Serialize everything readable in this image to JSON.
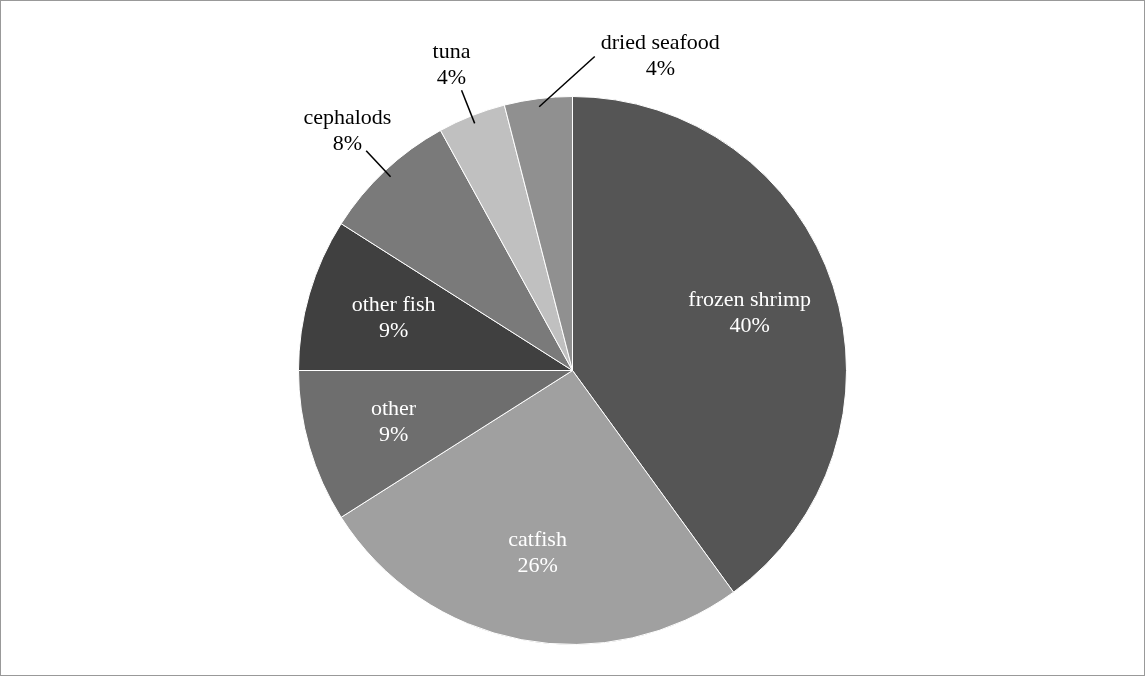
{
  "chart_data": {
    "type": "pie",
    "categories": [
      "frozen shrimp",
      "catfish",
      "other",
      "other fish",
      "cephalods",
      "tuna",
      "dried seafood"
    ],
    "values": [
      40,
      26,
      9,
      9,
      8,
      4,
      4
    ],
    "value_labels": [
      "40%",
      "26%",
      "9%",
      "9%",
      "8%",
      "4%",
      "4%"
    ],
    "colors": [
      "#555555",
      "#a0a0a0",
      "#6e6e6e",
      "#404040",
      "#7a7a7a",
      "#c0c0c0",
      "#909090"
    ],
    "legend": false
  }
}
